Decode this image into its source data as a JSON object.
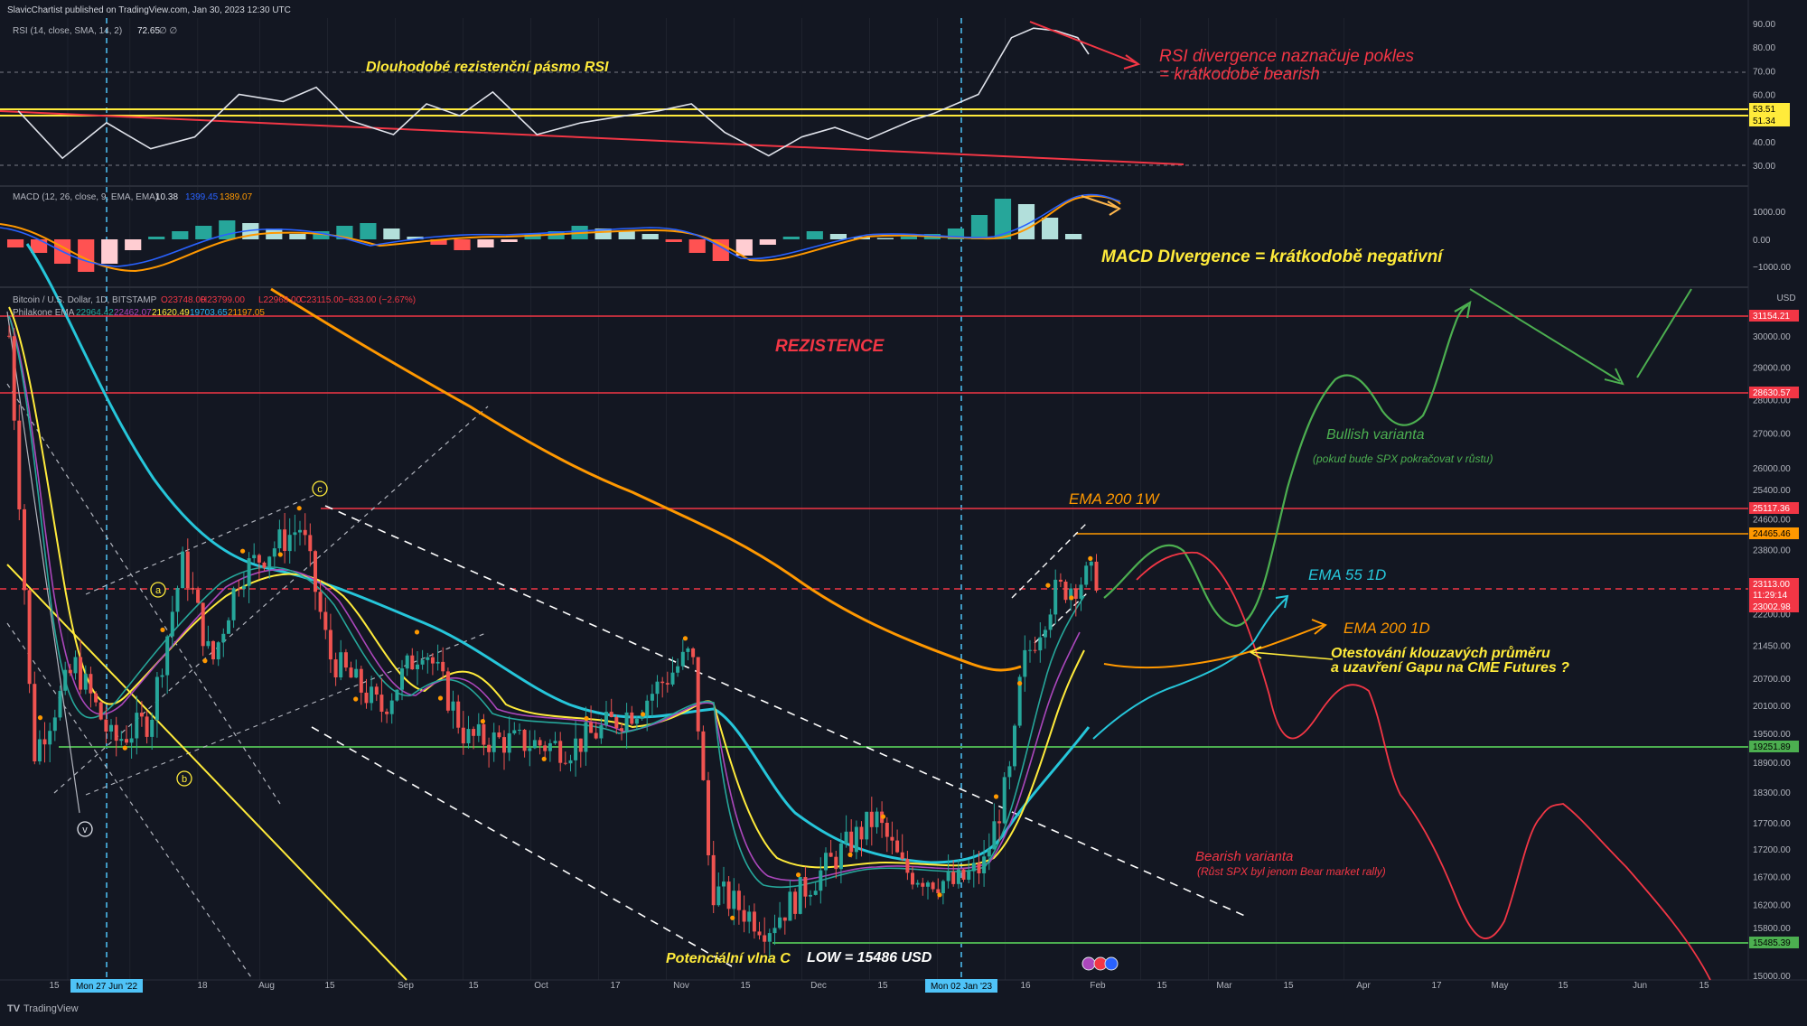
{
  "header": {
    "publisher": "SlavicChartist published on TradingView.com, Jan 30, 2023 12:30 UTC",
    "footer_brand": "TradingView"
  },
  "rsi_panel": {
    "legend": "RSI (14, close, SMA, 14, 2)",
    "value": "72.65",
    "nan_marks": "∅ ∅",
    "ticks": [
      "90.00",
      "80.00",
      "70.00",
      "60.00",
      "50.00",
      "40.00",
      "30.00"
    ],
    "levels": [
      "53.51",
      "51.34"
    ],
    "annotation_zone": "Dlouhodobé rezistenční pásmo RSI",
    "annotation_divergence_1": "RSI divergence naznačuje pokles",
    "annotation_divergence_2": "= krátkodobě bearish"
  },
  "macd_panel": {
    "legend": "MACD (12, 26, close, 9, EMA, EMA)",
    "hist": "10.38",
    "macd": "1399.45",
    "signal": "1389.07",
    "ticks": [
      "1000.00",
      "0.00",
      "−1000.00"
    ],
    "annotation": "MACD DIvergence = krátkodobě negativní"
  },
  "price_panel": {
    "symbol_legend": "Bitcoin / U.S. Dollar, 1D, BITSTAMP",
    "ohlc": {
      "o": "O23748.00",
      "h": "H23799.00",
      "l": "L22968.00",
      "c": "C23115.00",
      "chg": "−633.00 (−2.67%)"
    },
    "ema_legend": "Philakone EMA",
    "ema_values": [
      {
        "v": "22964.42",
        "color": "#26a69a"
      },
      {
        "v": "22462.07",
        "color": "#ab47bc"
      },
      {
        "v": "21620.49",
        "color": "#ffeb3b"
      },
      {
        "v": "19703.65",
        "color": "#29b6f6"
      },
      {
        "v": "21197.05",
        "color": "#ff9800"
      }
    ],
    "currency": "USD",
    "ticks": [
      "30000.00",
      "29000.00",
      "28000.00",
      "27000.00",
      "26000.00",
      "25400.00",
      "24600.00",
      "23800.00",
      "22200.00",
      "21450.00",
      "20700.00",
      "20100.00",
      "19500.00",
      "18900.00",
      "18300.00",
      "17700.00",
      "17200.00",
      "16700.00",
      "16200.00",
      "15800.00",
      "15000.00"
    ],
    "labels": [
      {
        "text": "31154.21",
        "bg": "#f23645",
        "fg": "#ffffff"
      },
      {
        "text": "28630.57",
        "bg": "#f23645",
        "fg": "#ffffff"
      },
      {
        "text": "25117.36",
        "bg": "#f23645",
        "fg": "#ffffff"
      },
      {
        "text": "24465.46",
        "bg": "#ff9800",
        "fg": "#000000"
      },
      {
        "text": "23113.00",
        "bg": "#f23645",
        "fg": "#ffffff"
      },
      {
        "text": "11:29:14",
        "bg": "#f23645",
        "fg": "#ffffff"
      },
      {
        "text": "23002.98",
        "bg": "#f23645",
        "fg": "#ffffff"
      },
      {
        "text": "19251.89",
        "bg": "#4caf50",
        "fg": "#000000"
      },
      {
        "text": "15485.39",
        "bg": "#4caf50",
        "fg": "#000000"
      }
    ],
    "annotations": {
      "rezistence": "REZISTENCE",
      "ema200w": "EMA 200 1W",
      "ema55d": "EMA 55 1D",
      "ema200d": "EMA 200 1D",
      "bullish": "Bullish varianta",
      "bullish_note": "(pokud bude SPX pokračovat v růstu)",
      "retest_1": "Otestování klouzavých průměru",
      "retest_2": "a uzavření Gapu na CME Futures ?",
      "bearish": "Bearish varianta",
      "bearish_note": "(Růst SPX byl jenom Bear market rally)",
      "wave_c": "Potenciální vlna C",
      "low": "LOW = 15486 USD",
      "wave_marks": [
        "a",
        "b",
        "c",
        "v"
      ]
    }
  },
  "time_axis": {
    "ticks": [
      "15",
      "18",
      "Aug",
      "15",
      "Sep",
      "15",
      "Oct",
      "17",
      "Nov",
      "15",
      "Dec",
      "15",
      "16",
      "Feb",
      "15",
      "Mar",
      "15",
      "Apr",
      "17",
      "May",
      "15",
      "Jun",
      "15"
    ],
    "highlights": [
      "Mon 27 Jun '22",
      "Mon 02 Jan '23"
    ]
  },
  "chart_data": {
    "type": "candlestick",
    "title": "Bitcoin / U.S. Dollar, 1D, BITSTAMP",
    "ylim": [
      15000,
      31500
    ],
    "rsi_ylim": [
      20,
      92
    ],
    "price_path": [
      [
        "2022-06-13",
        30000
      ],
      [
        "2022-06-18",
        19000
      ],
      [
        "2022-06-27",
        21000
      ],
      [
        "2022-07-05",
        19300
      ],
      [
        "2022-07-13",
        19800
      ],
      [
        "2022-07-20",
        23500
      ],
      [
        "2022-07-26",
        21000
      ],
      [
        "2022-08-01",
        23200
      ],
      [
        "2022-08-14",
        24400
      ],
      [
        "2022-08-20",
        21200
      ],
      [
        "2022-08-31",
        20000
      ],
      [
        "2022-09-09",
        21500
      ],
      [
        "2022-09-18",
        19400
      ],
      [
        "2022-10-01",
        19300
      ],
      [
        "2022-10-10",
        19200
      ],
      [
        "2022-10-17",
        19600
      ],
      [
        "2022-10-25",
        20100
      ],
      [
        "2022-11-05",
        21300
      ],
      [
        "2022-11-09",
        16500
      ],
      [
        "2022-11-21",
        15800
      ],
      [
        "2022-12-05",
        17000
      ],
      [
        "2022-12-14",
        17800
      ],
      [
        "2022-12-20",
        16800
      ],
      [
        "2022-12-31",
        16550
      ],
      [
        "2023-01-06",
        16900
      ],
      [
        "2023-01-12",
        18800
      ],
      [
        "2023-01-14",
        20900
      ],
      [
        "2023-01-21",
        22700
      ],
      [
        "2023-01-28",
        23100
      ],
      [
        "2023-01-30",
        23113
      ]
    ],
    "rsi_path": [
      [
        1,
        53
      ],
      [
        5,
        33
      ],
      [
        9,
        48
      ],
      [
        13,
        37
      ],
      [
        17,
        42
      ],
      [
        21,
        60
      ],
      [
        25,
        57
      ],
      [
        28,
        63
      ],
      [
        31,
        49
      ],
      [
        35,
        43
      ],
      [
        38,
        56
      ],
      [
        41,
        51
      ],
      [
        44,
        61
      ],
      [
        48,
        43
      ],
      [
        52,
        48
      ],
      [
        56,
        51
      ],
      [
        59,
        53
      ],
      [
        62,
        56
      ],
      [
        65,
        44
      ],
      [
        69,
        34
      ],
      [
        72,
        42
      ],
      [
        75,
        46
      ],
      [
        78,
        41
      ],
      [
        82,
        49
      ],
      [
        84,
        52
      ],
      [
        88,
        60
      ],
      [
        91,
        84
      ],
      [
        93,
        88
      ],
      [
        95,
        87
      ],
      [
        97,
        84
      ],
      [
        98,
        77
      ]
    ],
    "macd_hist": [
      -300,
      -500,
      -900,
      -1200,
      -900,
      -400,
      100,
      300,
      500,
      700,
      600,
      400,
      200,
      300,
      500,
      600,
      400,
      100,
      -200,
      -400,
      -300,
      -100,
      200,
      300,
      500,
      400,
      300,
      200,
      -100,
      -500,
      -800,
      -600,
      -200,
      100,
      300,
      200,
      100,
      50,
      100,
      200,
      400,
      900,
      1500,
      1300,
      800,
      200
    ],
    "ranges": {
      "time_start": "2022-06-13",
      "time_end": "2023-06-18"
    },
    "series": [
      {
        "name": "Bitcoin / U.S. Dollar"
      },
      {
        "name": "RSI"
      },
      {
        "name": "MACD"
      }
    ]
  }
}
